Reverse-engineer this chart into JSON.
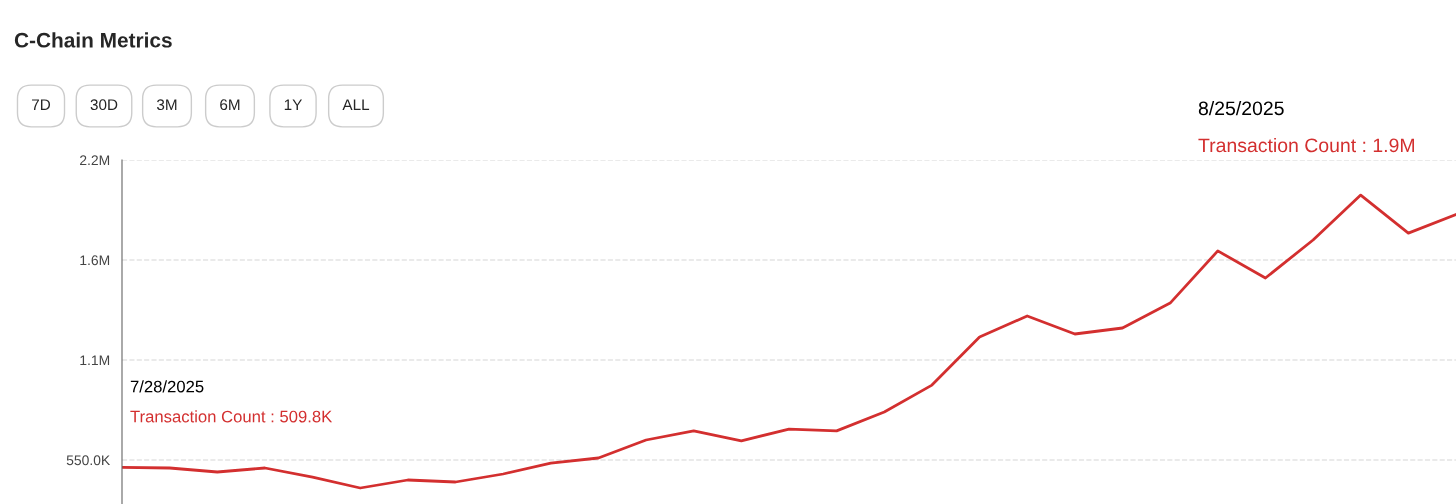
{
  "chart_data": {
    "type": "line",
    "title": "C-Chain Metrics",
    "categories": [
      null,
      null,
      null,
      null,
      null,
      null,
      null,
      null,
      null,
      null,
      null,
      null,
      null,
      null,
      null,
      null,
      null,
      null,
      null,
      null,
      null,
      null,
      null,
      null,
      null,
      null,
      null,
      null,
      null
    ],
    "series": [
      {
        "color": "#d32f2f",
        "values": [
          510000,
          506000,
          484000,
          506000,
          456000,
          396000,
          440000,
          429000,
          473000,
          533000,
          561000,
          660000,
          710000,
          655000,
          720000,
          710000,
          814000,
          962000,
          1226000,
          1342000,
          1243000,
          1276000,
          1413000,
          1700000,
          1551000,
          1760000,
          2007000,
          1798000,
          1900000
        ]
      }
    ],
    "ylim": [
      308000,
      2200000
    ],
    "yticks": [
      {
        "value": 550000,
        "label": "550.0K"
      },
      {
        "value": 1100000,
        "label": "1.1M"
      },
      {
        "value": 1650000,
        "label": "1.6M"
      },
      {
        "value": 2200000,
        "label": "2.2M"
      }
    ],
    "grid": "y",
    "marker": "none",
    "line_style": "solid",
    "annotations": [
      "7D",
      "30D",
      "3M",
      "6M",
      "1Y",
      "ALL",
      "7/28/2025",
      "Transaction Count : 509.8K",
      "8/25/2025",
      "Transaction Count : 1.9M"
    ]
  }
}
